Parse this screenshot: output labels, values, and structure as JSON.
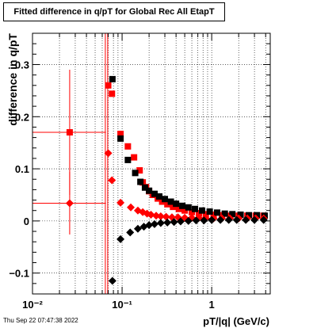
{
  "timestamp": "Thu Sep 22 07:47:38 2022",
  "chart_data": {
    "type": "scatter",
    "title": "Fitted difference in q/pT for Global Rec All EtapT",
    "xlabel": "pT/|q| (GeV/c)",
    "ylabel": "difference in q/pT",
    "xscale": "log",
    "xlim": [
      0.01,
      4.5
    ],
    "ylim": [
      -0.14,
      0.36
    ],
    "grid": true,
    "x_ticks": [
      {
        "value": 0.01,
        "label": "10⁻²"
      },
      {
        "value": 0.1,
        "label": "10⁻¹"
      },
      {
        "value": 1,
        "label": "1"
      }
    ],
    "y_ticks": [
      {
        "value": -0.1,
        "label": "−0.1"
      },
      {
        "value": 0,
        "label": "0"
      },
      {
        "value": 0.1,
        "label": "0.1"
      },
      {
        "value": 0.2,
        "label": "0.2"
      },
      {
        "value": 0.3,
        "label": "0.3"
      }
    ],
    "vline": {
      "x": 0.067,
      "color": "#ff0000"
    },
    "series": [
      {
        "marker": "square",
        "color": "#ff0000",
        "points": [
          {
            "x": 0.026,
            "y": 0.17,
            "xerr": [
              0.016,
              0.04
            ],
            "yerr": 0.12
          },
          {
            "x": 0.07,
            "y": 0.26
          },
          {
            "x": 0.077,
            "y": 0.244
          },
          {
            "x": 0.096,
            "y": 0.167
          },
          {
            "x": 0.116,
            "y": 0.143
          },
          {
            "x": 0.136,
            "y": 0.122
          },
          {
            "x": 0.157,
            "y": 0.097
          },
          {
            "x": 0.17,
            "y": 0.074
          },
          {
            "x": 0.185,
            "y": 0.065
          },
          {
            "x": 0.2,
            "y": 0.057
          },
          {
            "x": 0.22,
            "y": 0.05
          },
          {
            "x": 0.25,
            "y": 0.043
          },
          {
            "x": 0.28,
            "y": 0.037
          },
          {
            "x": 0.32,
            "y": 0.032
          },
          {
            "x": 0.37,
            "y": 0.027
          },
          {
            "x": 0.43,
            "y": 0.023
          },
          {
            "x": 0.5,
            "y": 0.02
          },
          {
            "x": 0.6,
            "y": 0.017
          },
          {
            "x": 0.72,
            "y": 0.015
          },
          {
            "x": 0.86,
            "y": 0.013
          },
          {
            "x": 1.05,
            "y": 0.012
          },
          {
            "x": 1.3,
            "y": 0.011
          },
          {
            "x": 1.6,
            "y": 0.01
          },
          {
            "x": 2.0,
            "y": 0.01
          },
          {
            "x": 2.5,
            "y": 0.01
          },
          {
            "x": 3.1,
            "y": 0.01
          },
          {
            "x": 3.8,
            "y": 0.01
          }
        ]
      },
      {
        "marker": "square",
        "color": "#000000",
        "points": [
          {
            "x": 0.078,
            "y": 0.272
          },
          {
            "x": 0.096,
            "y": 0.158
          },
          {
            "x": 0.116,
            "y": 0.117
          },
          {
            "x": 0.14,
            "y": 0.092
          },
          {
            "x": 0.16,
            "y": 0.075
          },
          {
            "x": 0.18,
            "y": 0.064
          },
          {
            "x": 0.2,
            "y": 0.058
          },
          {
            "x": 0.23,
            "y": 0.052
          },
          {
            "x": 0.26,
            "y": 0.047
          },
          {
            "x": 0.3,
            "y": 0.042
          },
          {
            "x": 0.35,
            "y": 0.037
          },
          {
            "x": 0.4,
            "y": 0.033
          },
          {
            "x": 0.47,
            "y": 0.029
          },
          {
            "x": 0.55,
            "y": 0.026
          },
          {
            "x": 0.65,
            "y": 0.023
          },
          {
            "x": 0.78,
            "y": 0.02
          },
          {
            "x": 0.95,
            "y": 0.018
          },
          {
            "x": 1.15,
            "y": 0.016
          },
          {
            "x": 1.4,
            "y": 0.014
          },
          {
            "x": 1.7,
            "y": 0.013
          },
          {
            "x": 2.1,
            "y": 0.012
          },
          {
            "x": 2.6,
            "y": 0.011
          },
          {
            "x": 3.2,
            "y": 0.011
          },
          {
            "x": 3.9,
            "y": 0.01
          }
        ]
      },
      {
        "marker": "diamond",
        "color": "#ff0000",
        "points": [
          {
            "x": 0.026,
            "y": 0.034,
            "xerr": [
              0.016,
              0.04
            ],
            "yerr": 0.06
          },
          {
            "x": 0.07,
            "y": 0.13
          },
          {
            "x": 0.077,
            "y": 0.078
          },
          {
            "x": 0.096,
            "y": 0.035
          },
          {
            "x": 0.125,
            "y": 0.026
          },
          {
            "x": 0.15,
            "y": 0.02
          },
          {
            "x": 0.17,
            "y": 0.017
          },
          {
            "x": 0.19,
            "y": 0.014
          },
          {
            "x": 0.21,
            "y": 0.012
          },
          {
            "x": 0.24,
            "y": 0.01
          },
          {
            "x": 0.27,
            "y": 0.009
          },
          {
            "x": 0.31,
            "y": 0.008
          },
          {
            "x": 0.36,
            "y": 0.007
          },
          {
            "x": 0.42,
            "y": 0.007
          },
          {
            "x": 0.5,
            "y": 0.006
          },
          {
            "x": 0.6,
            "y": 0.006
          },
          {
            "x": 0.72,
            "y": 0.006
          },
          {
            "x": 0.86,
            "y": 0.005
          },
          {
            "x": 1.05,
            "y": 0.005
          },
          {
            "x": 1.3,
            "y": 0.005
          },
          {
            "x": 1.6,
            "y": 0.005
          },
          {
            "x": 2.0,
            "y": 0.005
          },
          {
            "x": 2.5,
            "y": 0.005
          },
          {
            "x": 3.1,
            "y": 0.005
          },
          {
            "x": 3.8,
            "y": 0.005
          }
        ]
      },
      {
        "marker": "diamond",
        "color": "#000000",
        "points": [
          {
            "x": 0.078,
            "y": -0.115
          },
          {
            "x": 0.096,
            "y": -0.035
          },
          {
            "x": 0.123,
            "y": -0.022
          },
          {
            "x": 0.15,
            "y": -0.015
          },
          {
            "x": 0.175,
            "y": -0.011
          },
          {
            "x": 0.2,
            "y": -0.008
          },
          {
            "x": 0.23,
            "y": -0.006
          },
          {
            "x": 0.27,
            "y": -0.004
          },
          {
            "x": 0.32,
            "y": -0.003
          },
          {
            "x": 0.38,
            "y": -0.002
          },
          {
            "x": 0.45,
            "y": -0.001
          },
          {
            "x": 0.55,
            "y": 0.0
          },
          {
            "x": 0.67,
            "y": 0.001
          },
          {
            "x": 0.82,
            "y": 0.001
          },
          {
            "x": 1.0,
            "y": 0.002
          },
          {
            "x": 1.25,
            "y": 0.002
          },
          {
            "x": 1.55,
            "y": 0.002
          },
          {
            "x": 1.9,
            "y": 0.002
          },
          {
            "x": 2.4,
            "y": 0.002
          },
          {
            "x": 3.0,
            "y": 0.002
          },
          {
            "x": 3.8,
            "y": 0.002
          }
        ]
      }
    ]
  }
}
